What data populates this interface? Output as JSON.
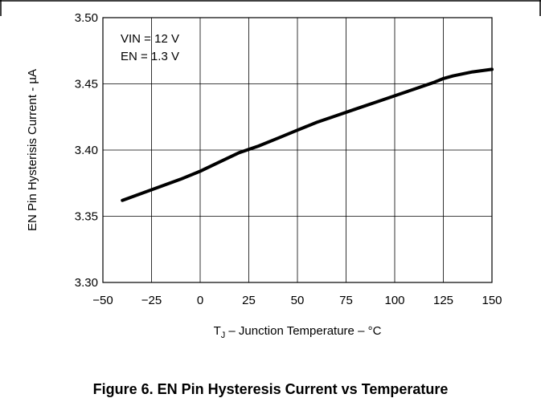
{
  "chart_data": {
    "type": "line",
    "xlabel": "T  – Junction Temperature – °C",
    "xlabel_main": "T",
    "xlabel_sub": "J",
    "xlabel_rest": " – Junction Temperature – °C",
    "ylabel": "EN Pin Hysterisis Current - µA",
    "xlim": [
      -50,
      150
    ],
    "ylim": [
      3.3,
      3.5
    ],
    "x_ticks": [
      -50,
      -25,
      0,
      25,
      50,
      75,
      100,
      125,
      150
    ],
    "x_tick_labels": [
      "−50",
      "−25",
      "0",
      "25",
      "50",
      "75",
      "100",
      "125",
      "150"
    ],
    "y_ticks": [
      3.3,
      3.35,
      3.4,
      3.45,
      3.5
    ],
    "y_tick_labels": [
      "3.30",
      "3.35",
      "3.40",
      "3.45",
      "3.50"
    ],
    "grid": true,
    "annotations": [
      "VIN = 12 V",
      "EN = 1.3 V"
    ],
    "series": [
      {
        "x": [
          -40,
          -25,
          -10,
          0,
          10,
          20,
          30,
          40,
          50,
          60,
          70,
          80,
          90,
          100,
          110,
          120,
          125,
          130,
          140,
          150
        ],
        "y": [
          3.362,
          3.37,
          3.378,
          3.384,
          3.391,
          3.398,
          3.403,
          3.409,
          3.415,
          3.421,
          3.426,
          3.431,
          3.436,
          3.441,
          3.446,
          3.451,
          3.454,
          3.456,
          3.459,
          3.461
        ]
      }
    ]
  },
  "caption": "Figure 6. EN Pin Hysteresis Current vs Temperature",
  "colors": {
    "line": "#000000",
    "grid": "#000000",
    "background": "#ffffff"
  }
}
